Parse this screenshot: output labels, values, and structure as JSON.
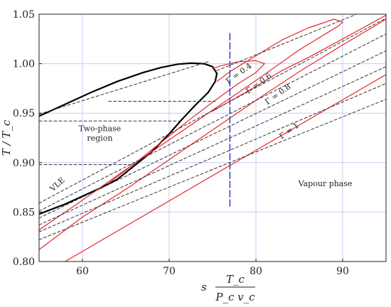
{
  "chart_data": {
    "type": "line",
    "title": "",
    "xlabel": {
      "prefix": "s",
      "numerator": "T_c",
      "denominator": "P_c v_c"
    },
    "ylabel": "T / T_c",
    "xlim": [
      55,
      95
    ],
    "ylim": [
      0.8,
      1.05
    ],
    "xticks": [
      60,
      70,
      80,
      90
    ],
    "yticks": [
      0.8,
      0.85,
      0.9,
      0.95,
      1.0,
      1.05
    ],
    "xtick_labels": [
      "60",
      "70",
      "80",
      "90"
    ],
    "ytick_labels": [
      "0.80",
      "0.85",
      "0.90",
      "0.95",
      "1.00",
      "1.05"
    ],
    "grid": true,
    "legend": "none",
    "colors": {
      "vle": "#000000",
      "gamma": "#e8262a",
      "isobar": "#333333",
      "tie": "#333333",
      "vline": "#2a3bd6",
      "grid": "#c3cdf2"
    },
    "series": [
      {
        "name": "VLE",
        "style": "solid",
        "x": [
          55.0,
          58.0,
          61.0,
          64.0,
          67.0,
          69.0,
          71.0,
          72.5,
          74.0,
          75.0,
          75.5,
          75.3,
          74.5,
          73.0,
          71.5,
          70.0,
          68.0,
          66.0,
          64.0,
          62.0,
          60.0,
          58.0,
          56.5,
          55.0
        ],
        "y": [
          0.947,
          0.959,
          0.971,
          0.982,
          0.991,
          0.996,
          0.9995,
          1.0005,
          1.0,
          0.997,
          0.99,
          0.982,
          0.971,
          0.958,
          0.944,
          0.929,
          0.911,
          0.897,
          0.883,
          0.874,
          0.866,
          0.858,
          0.853,
          0.848
        ]
      },
      {
        "name": "Γ = 1",
        "style": "solid",
        "x": [
          58.0,
          95.0
        ],
        "y": [
          0.8,
          0.989
        ]
      },
      {
        "name": "Γ = 0.8",
        "style": "solid",
        "x": [
          55.0,
          60.0,
          65.0,
          70.0,
          75.0,
          80.0,
          85.0,
          90.0,
          95.0,
          95.0,
          90.0,
          86.0,
          83.0,
          80.0,
          77.0,
          75.0
        ],
        "y": [
          0.812,
          0.845,
          0.873,
          0.903,
          0.933,
          0.963,
          0.992,
          1.019,
          1.045,
          1.049,
          1.025,
          1.006,
          0.993,
          0.977,
          0.962,
          0.952
        ]
      },
      {
        "name": "Γ = 0.6",
        "style": "solid",
        "x": [
          55.0,
          60.0,
          65.0,
          70.0,
          75.0,
          80.0,
          85.0,
          89.5,
          90.0,
          89.0,
          86.0,
          83.0,
          80.0,
          77.0,
          75.5
        ],
        "y": [
          0.832,
          0.862,
          0.893,
          0.923,
          0.953,
          0.983,
          1.014,
          1.038,
          1.042,
          1.045,
          1.036,
          1.024,
          1.008,
          0.992,
          0.982
        ]
      },
      {
        "name": "Γ = 0.4",
        "style": "solid",
        "x": [
          63.0,
          66.0,
          69.0,
          72.0,
          75.0,
          78.0,
          80.0,
          81.0,
          80.0,
          78.0,
          76.0,
          75.0
        ],
        "y": [
          0.879,
          0.899,
          0.92,
          0.941,
          0.961,
          0.98,
          0.991,
          1.0,
          1.003,
          1.002,
          0.998,
          0.995
        ]
      },
      {
        "name": "isobar-1",
        "style": "dashed",
        "x": [
          55.0,
          95.0
        ],
        "y": [
          0.822,
          0.964
        ]
      },
      {
        "name": "isobar-2",
        "style": "dashed",
        "x": [
          55.0,
          95.0
        ],
        "y": [
          0.83,
          0.98
        ]
      },
      {
        "name": "isobar-3",
        "style": "dashed",
        "x": [
          55.0,
          95.0
        ],
        "y": [
          0.837,
          0.997
        ]
      },
      {
        "name": "isobar-4",
        "style": "dashed",
        "x": [
          55.0,
          95.0
        ],
        "y": [
          0.844,
          1.013
        ]
      },
      {
        "name": "isobar-5",
        "style": "dashed",
        "x": [
          55.0,
          95.0
        ],
        "y": [
          0.851,
          1.03
        ]
      },
      {
        "name": "isobar-6",
        "style": "dashed",
        "x": [
          55.0,
          95.0
        ],
        "y": [
          0.859,
          1.046
        ]
      },
      {
        "name": "isobar-7",
        "style": "dashed",
        "x": [
          75.5,
          95.0
        ],
        "y": [
          0.993,
          1.062
        ]
      },
      {
        "name": "isobar-8",
        "style": "dashed",
        "x": [
          55.0,
          74.5
        ],
        "y": [
          0.949,
          1.002
        ]
      },
      {
        "name": "tie-0.962",
        "style": "dashed",
        "x": [
          63.0,
          75.3
        ],
        "y": [
          0.962,
          0.962
        ]
      },
      {
        "name": "tie-0.942",
        "style": "dashed",
        "x": [
          55.0,
          71.5
        ],
        "y": [
          0.942,
          0.942
        ]
      },
      {
        "name": "tie-0.898",
        "style": "dashed",
        "x": [
          55.0,
          66.0
        ],
        "y": [
          0.898,
          0.898
        ]
      },
      {
        "name": "vertical-line",
        "style": "longdash",
        "x": [
          77.0,
          77.0
        ],
        "y": [
          0.856,
          1.033
        ]
      }
    ],
    "annotations": [
      {
        "text": "Two-phase",
        "x": 62.0,
        "y": 0.932,
        "rotate": 0
      },
      {
        "text": "region",
        "x": 62.0,
        "y": 0.922,
        "rotate": 0
      },
      {
        "text": "Vapour phase",
        "x": 88.0,
        "y": 0.876,
        "rotate": 0
      },
      {
        "text": "VLE",
        "x": 57.3,
        "y": 0.876,
        "rotate": -42
      },
      {
        "text": "Γ = 0.4",
        "x": 78.2,
        "y": 0.988,
        "rotate": -36
      },
      {
        "text": "Γ = 0.6",
        "x": 80.5,
        "y": 0.978,
        "rotate": -36
      },
      {
        "text": "Γ = 0.8",
        "x": 82.7,
        "y": 0.967,
        "rotate": -36
      },
      {
        "text": "Γ = 1",
        "x": 84.0,
        "y": 0.93,
        "rotate": -36
      }
    ]
  }
}
